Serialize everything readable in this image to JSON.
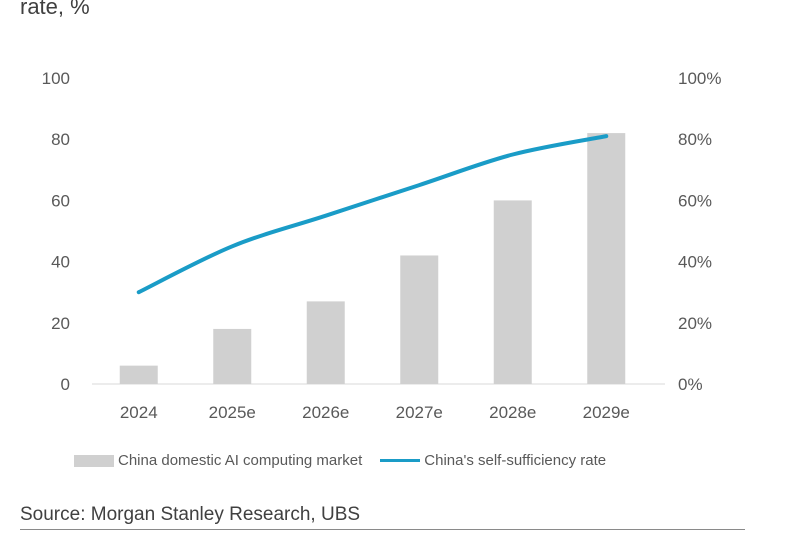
{
  "header": {
    "clipped_title": "rate, %"
  },
  "chart_data": {
    "type": "bar",
    "categories": [
      "2024",
      "2025e",
      "2026e",
      "2027e",
      "2028e",
      "2029e"
    ],
    "series": [
      {
        "name": "China domestic AI computing market",
        "type": "bar",
        "axis": "left",
        "values": [
          6,
          18,
          27,
          42,
          60,
          82
        ],
        "color": "#d0d0d0"
      },
      {
        "name": "China's self-sufficiency rate",
        "type": "line",
        "axis": "right",
        "values": [
          30,
          45,
          55,
          65,
          75,
          81
        ],
        "color": "#1a9cc7"
      }
    ],
    "left_axis": {
      "ylim": [
        0,
        100
      ],
      "ticks": [
        "0",
        "20",
        "40",
        "60",
        "80",
        "100"
      ]
    },
    "right_axis": {
      "ylim": [
        0,
        100
      ],
      "ticks": [
        "0%",
        "20%",
        "40%",
        "60%",
        "80%",
        "100%"
      ]
    },
    "grid": false,
    "legend_position": "bottom"
  },
  "legend": {
    "bar_label": "China domestic AI computing market",
    "line_label": "China's self-sufficiency rate"
  },
  "footer": {
    "source": "Source: Morgan Stanley Research, UBS"
  }
}
